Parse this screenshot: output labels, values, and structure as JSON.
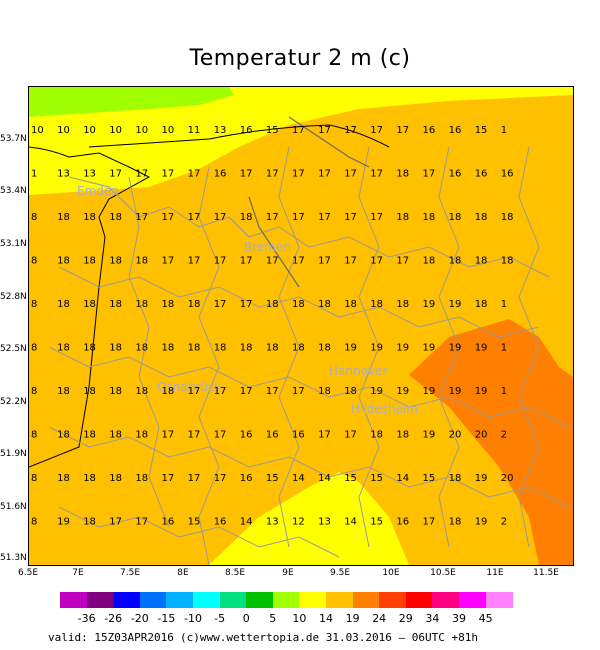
{
  "title": "Temperatur 2 m (c)",
  "footer": {
    "valid": "valid: 15Z03APR2016",
    "credit": "(c)www.wettertopia.de 31.03.2016 –  06UTC +81h"
  },
  "axes": {
    "x_ticks": [
      "6.5E",
      "7E",
      "7.5E",
      "8E",
      "8.5E",
      "9E",
      "9.5E",
      "10E",
      "10.5E",
      "11E",
      "11.5E"
    ],
    "y_ticks": [
      "53.7N",
      "53.4N",
      "53.1N",
      "52.8N",
      "52.5N",
      "52.2N",
      "51.9N",
      "51.6N",
      "51.3N"
    ]
  },
  "cities": [
    "Emden",
    "Bremen",
    "Osnabrück",
    "Hannover",
    "Hildesheim"
  ],
  "legend": {
    "labels": [
      "-36",
      "-26",
      "-20",
      "-15",
      "-10",
      "-5",
      "0",
      "5",
      "10",
      "14",
      "19",
      "24",
      "29",
      "34",
      "39",
      "45"
    ],
    "colors": [
      "#c000c0",
      "#800080",
      "#0000ff",
      "#0070ff",
      "#00b0ff",
      "#00ffff",
      "#00e080",
      "#00c000",
      "#a0ff00",
      "#ffff00",
      "#ffc000",
      "#ff8000",
      "#ff4000",
      "#ff0000",
      "#ff0080",
      "#ff00ff",
      "#ff80ff"
    ]
  },
  "chart_data": {
    "type": "heatmap",
    "title": "Temperatur 2 m (c)",
    "xlabel": "",
    "ylabel": "",
    "grid_rows": [
      [
        "10",
        "10",
        "10",
        "10",
        "10",
        "10",
        "11",
        "13",
        "16",
        "15",
        "17",
        "17",
        "17",
        "17",
        "17",
        "16",
        "16",
        "15",
        "1"
      ],
      [
        "1",
        "13",
        "13",
        "17",
        "17",
        "17",
        "17",
        "16",
        "17",
        "17",
        "17",
        "17",
        "17",
        "17",
        "18",
        "17",
        "16",
        "16",
        "16"
      ],
      [
        "8",
        "18",
        "18",
        "18",
        "17",
        "17",
        "17",
        "17",
        "18",
        "17",
        "17",
        "17",
        "17",
        "17",
        "18",
        "18",
        "18",
        "18",
        "18"
      ],
      [
        "8",
        "18",
        "18",
        "18",
        "18",
        "17",
        "17",
        "17",
        "17",
        "17",
        "17",
        "17",
        "17",
        "17",
        "17",
        "18",
        "18",
        "18",
        "18"
      ],
      [
        "8",
        "18",
        "18",
        "18",
        "18",
        "18",
        "18",
        "17",
        "17",
        "18",
        "18",
        "18",
        "18",
        "18",
        "18",
        "19",
        "19",
        "18",
        "1"
      ],
      [
        "8",
        "18",
        "18",
        "18",
        "18",
        "18",
        "18",
        "18",
        "18",
        "18",
        "18",
        "18",
        "19",
        "19",
        "19",
        "19",
        "19",
        "19",
        "1"
      ],
      [
        "8",
        "18",
        "18",
        "18",
        "18",
        "18",
        "17",
        "17",
        "17",
        "17",
        "17",
        "18",
        "18",
        "19",
        "19",
        "19",
        "19",
        "19",
        "1"
      ],
      [
        "8",
        "18",
        "18",
        "18",
        "18",
        "17",
        "17",
        "17",
        "16",
        "16",
        "16",
        "17",
        "17",
        "18",
        "18",
        "19",
        "20",
        "20",
        "2"
      ],
      [
        "8",
        "18",
        "18",
        "18",
        "18",
        "17",
        "17",
        "17",
        "16",
        "15",
        "14",
        "14",
        "15",
        "15",
        "14",
        "15",
        "18",
        "19",
        "20"
      ],
      [
        "8",
        "19",
        "18",
        "17",
        "17",
        "16",
        "15",
        "16",
        "14",
        "13",
        "12",
        "13",
        "14",
        "15",
        "16",
        "17",
        "18",
        "19",
        "2"
      ]
    ],
    "legend_bins": [
      "-36",
      "-26",
      "-20",
      "-15",
      "-10",
      "-5",
      "0",
      "5",
      "10",
      "14",
      "19",
      "24",
      "29",
      "34",
      "39",
      "45"
    ]
  }
}
